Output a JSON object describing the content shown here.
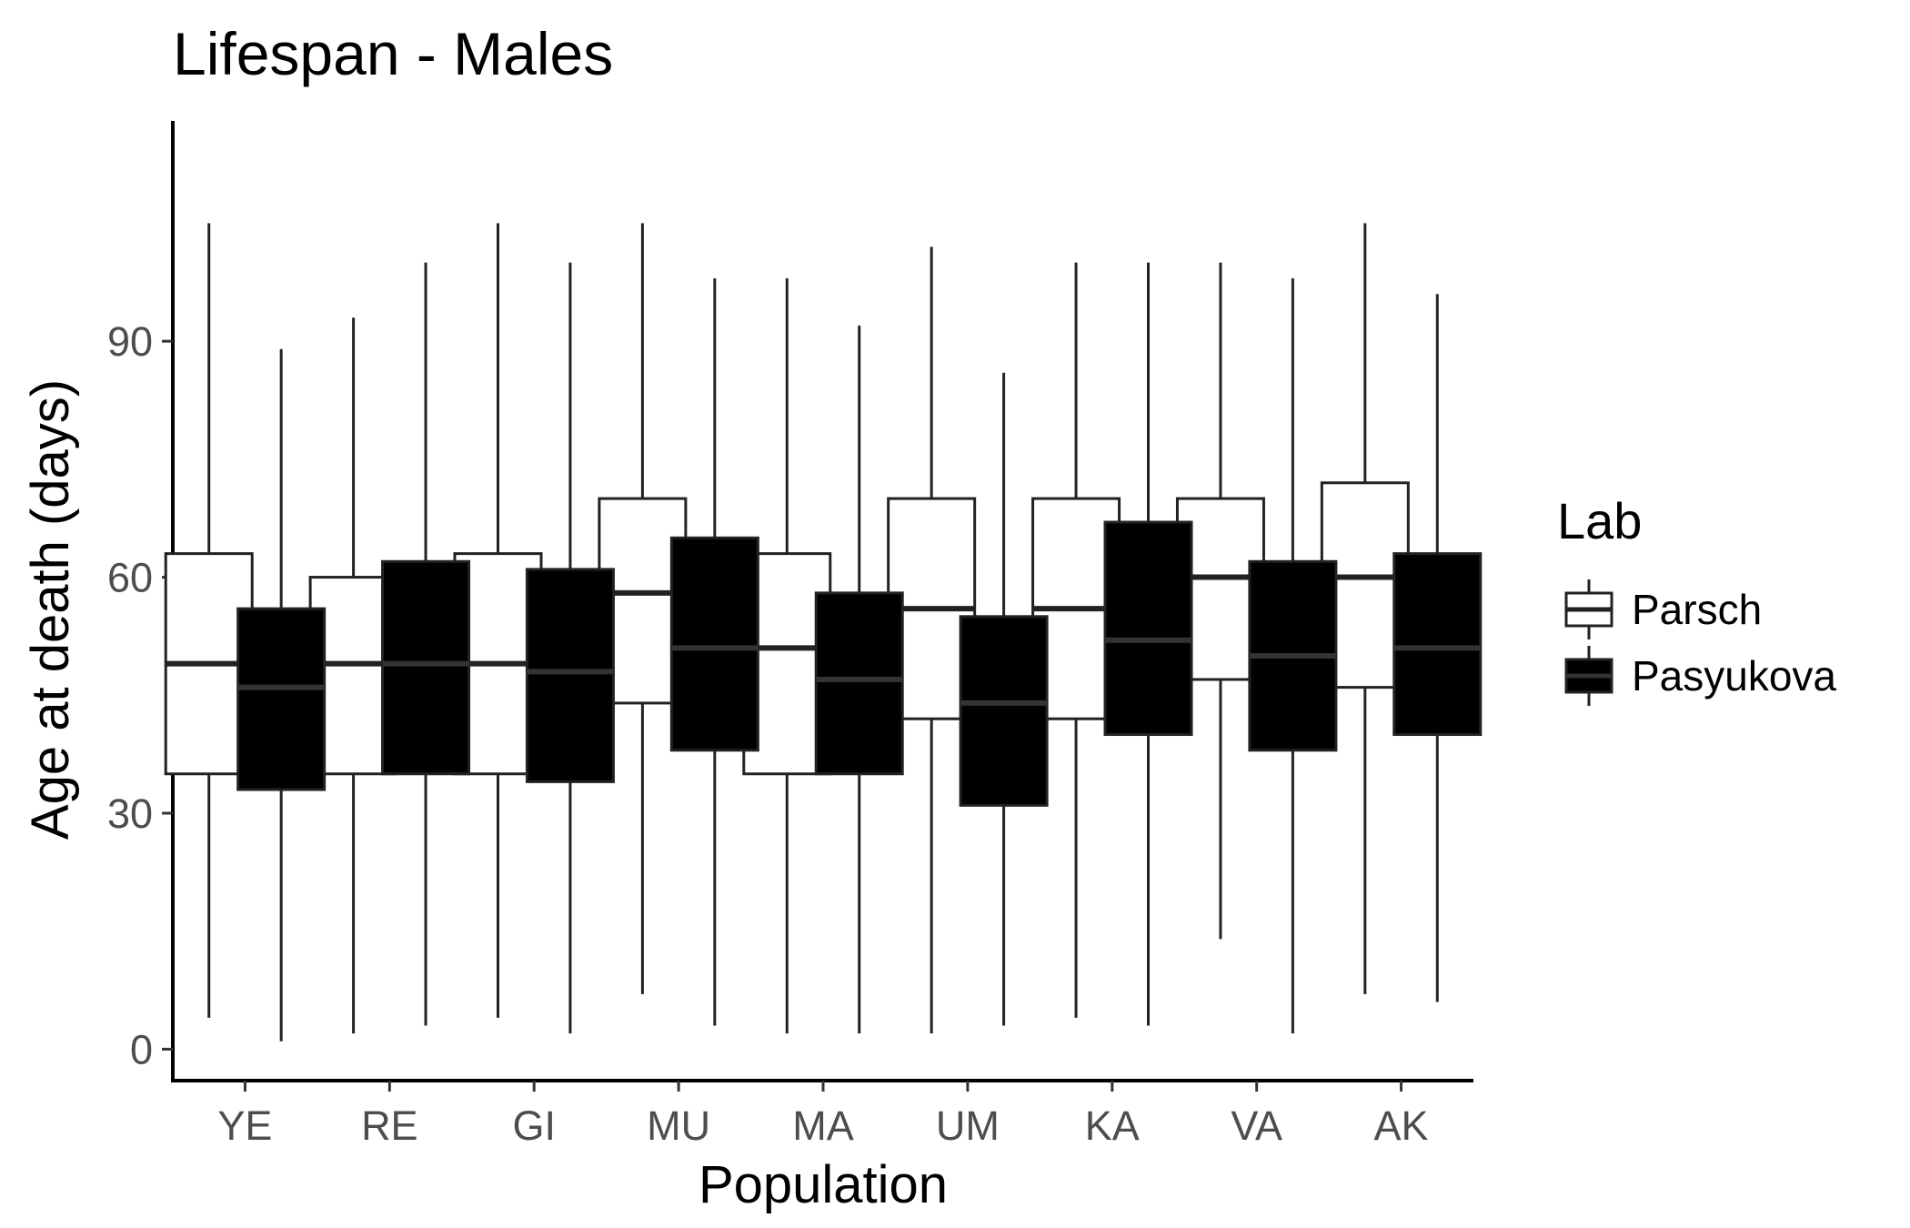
{
  "chart_data": {
    "type": "boxplot",
    "title": "Lifespan - Males",
    "xlabel": "Population",
    "ylabel": "Age at death (days)",
    "ylim": [
      -4,
      118
    ],
    "yticks": [
      0,
      30,
      60,
      90
    ],
    "grid": false,
    "legend_placement": "right",
    "legend_title": "Lab",
    "categories": [
      "YE",
      "RE",
      "GI",
      "MU",
      "MA",
      "UM",
      "KA",
      "VA",
      "AK"
    ],
    "series": [
      {
        "name": "Parsch",
        "fill": "#ffffff",
        "boxes": [
          {
            "min": 4,
            "q1": 35,
            "median": 49,
            "q3": 63,
            "max": 105
          },
          {
            "min": 2,
            "q1": 35,
            "median": 49,
            "q3": 60,
            "max": 93
          },
          {
            "min": 4,
            "q1": 35,
            "median": 49,
            "q3": 63,
            "max": 105
          },
          {
            "min": 7,
            "q1": 44,
            "median": 58,
            "q3": 70,
            "max": 105
          },
          {
            "min": 2,
            "q1": 35,
            "median": 51,
            "q3": 63,
            "max": 98
          },
          {
            "min": 2,
            "q1": 42,
            "median": 56,
            "q3": 70,
            "max": 102
          },
          {
            "min": 4,
            "q1": 42,
            "median": 56,
            "q3": 70,
            "max": 100
          },
          {
            "min": 14,
            "q1": 47,
            "median": 60,
            "q3": 70,
            "max": 100
          },
          {
            "min": 7,
            "q1": 46,
            "median": 60,
            "q3": 72,
            "max": 105
          }
        ]
      },
      {
        "name": "Pasyukova",
        "fill": "#000000",
        "boxes": [
          {
            "min": 1,
            "q1": 33,
            "median": 46,
            "q3": 56,
            "max": 89
          },
          {
            "min": 3,
            "q1": 35,
            "median": 49,
            "q3": 62,
            "max": 100
          },
          {
            "min": 2,
            "q1": 34,
            "median": 48,
            "q3": 61,
            "max": 100
          },
          {
            "min": 3,
            "q1": 38,
            "median": 51,
            "q3": 65,
            "max": 98
          },
          {
            "min": 2,
            "q1": 35,
            "median": 47,
            "q3": 58,
            "max": 92
          },
          {
            "min": 3,
            "q1": 31,
            "median": 44,
            "q3": 55,
            "max": 86
          },
          {
            "min": 3,
            "q1": 40,
            "median": 52,
            "q3": 67,
            "max": 100
          },
          {
            "min": 2,
            "q1": 38,
            "median": 50,
            "q3": 62,
            "max": 98
          },
          {
            "min": 6,
            "q1": 40,
            "median": 51,
            "q3": 63,
            "max": 96
          }
        ]
      }
    ]
  }
}
